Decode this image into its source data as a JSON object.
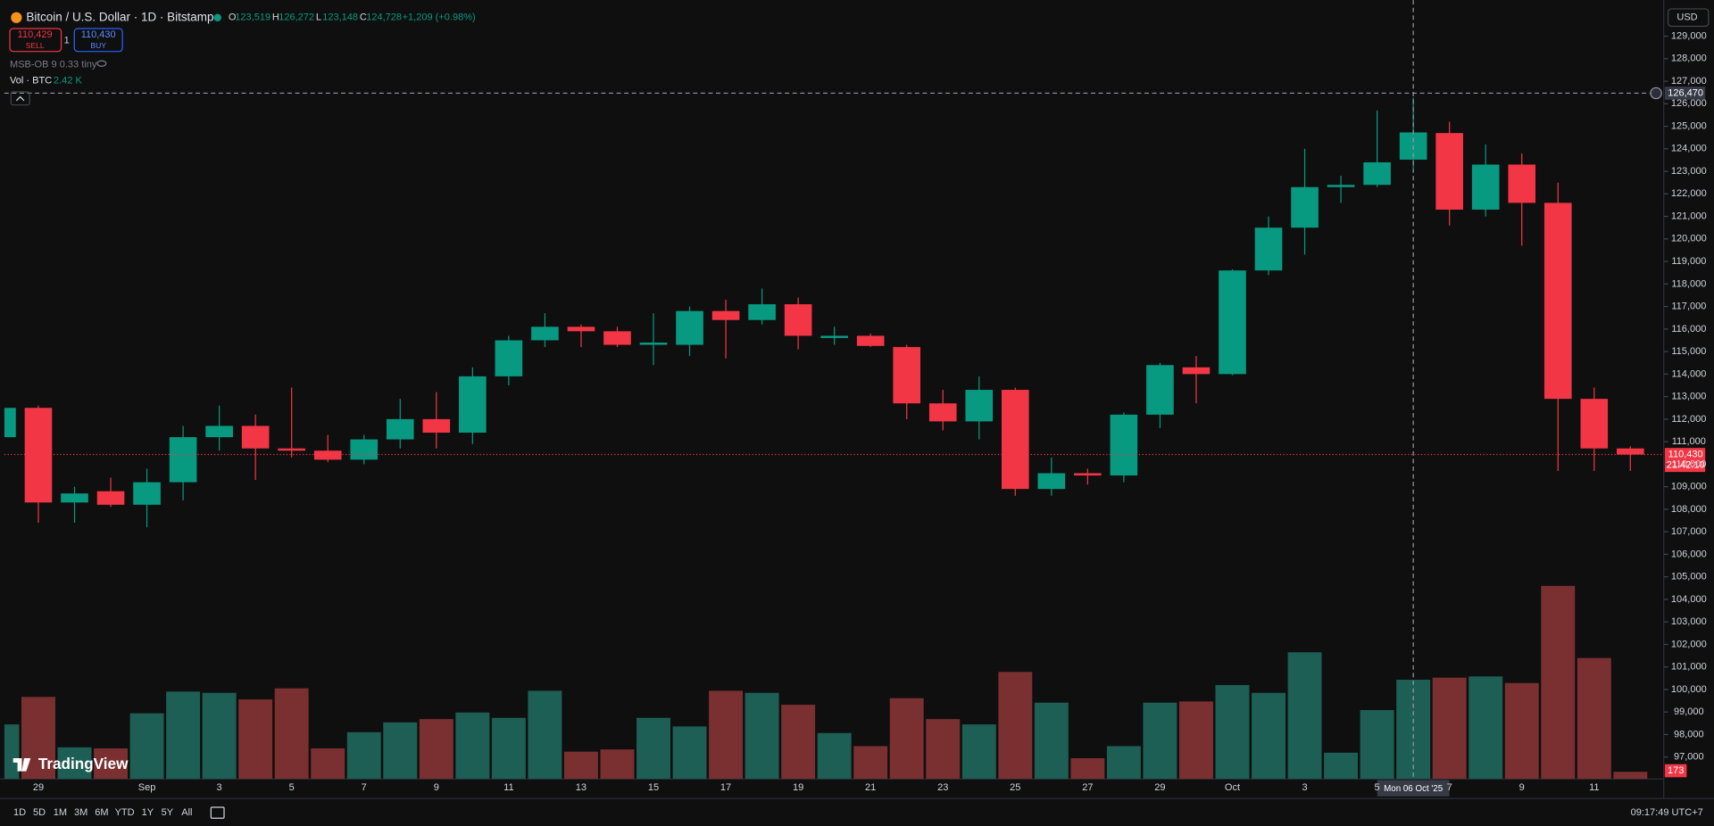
{
  "header": {
    "title": "Bitcoin / U.S. Dollar · 1D · Bitstamp",
    "ohlc": [
      {
        "label": "O",
        "value": "123,519"
      },
      {
        "label": "H",
        "value": "126,272"
      },
      {
        "label": "L",
        "value": "123,148"
      },
      {
        "label": "C",
        "value": "124,728"
      }
    ],
    "change": "+1,209 (+0.98%)",
    "sell": {
      "price": "110,429",
      "label": "SELL"
    },
    "quantity": "1",
    "buy": {
      "price": "110,430",
      "label": "BUY"
    },
    "indicator": "MSB-OB 9 0.33 tiny",
    "volume_legend": {
      "label": "Vol · BTC",
      "value": "2.42 K"
    },
    "currency": "USD"
  },
  "chart_data": {
    "type": "candlestick",
    "categories": [
      null,
      "29",
      null,
      null,
      "Sep",
      null,
      "3",
      null,
      "5",
      null,
      "7",
      null,
      "9",
      null,
      "11",
      null,
      "13",
      null,
      "15",
      null,
      "17",
      null,
      "19",
      null,
      "21",
      null,
      "23",
      null,
      "25",
      null,
      "27",
      null,
      "29",
      null,
      "Oct",
      null,
      "3",
      null,
      "5",
      null,
      "7",
      null,
      "9",
      null,
      "11",
      null
    ],
    "open": [
      111200,
      112500,
      108300,
      108800,
      108200,
      109200,
      111200,
      111700,
      110700,
      110600,
      110200,
      111100,
      112000,
      111400,
      113900,
      115500,
      116100,
      115900,
      115300,
      115300,
      116800,
      116400,
      117100,
      115600,
      115700,
      115200,
      112700,
      111900,
      113300,
      108900,
      109600,
      109500,
      112200,
      114300,
      114000,
      118600,
      120500,
      122300,
      122400,
      123519,
      124700,
      121300,
      123300,
      121600,
      112900,
      110700
    ],
    "high": [
      112600,
      112600,
      109000,
      109400,
      109800,
      111700,
      112600,
      112200,
      113400,
      111300,
      111300,
      112900,
      113200,
      114300,
      115700,
      116700,
      116200,
      116100,
      116700,
      117000,
      117300,
      117800,
      117400,
      116100,
      115800,
      115300,
      113300,
      113900,
      113400,
      110300,
      109800,
      112300,
      114500,
      114800,
      118650,
      121000,
      124000,
      122800,
      125700,
      126272,
      125200,
      124200,
      123800,
      122500,
      113400,
      110800
    ],
    "low": [
      110900,
      107400,
      107400,
      108100,
      107200,
      108400,
      110600,
      109300,
      110300,
      110100,
      110000,
      110700,
      110700,
      110900,
      113500,
      115200,
      115200,
      115200,
      114400,
      114800,
      114700,
      116200,
      115100,
      115300,
      115200,
      112000,
      111500,
      111100,
      108600,
      108600,
      109100,
      109200,
      111600,
      112700,
      113950,
      118400,
      119300,
      121600,
      122300,
      123148,
      120600,
      121000,
      119700,
      109700,
      109700,
      109700
    ],
    "close": [
      112500,
      108300,
      108700,
      108200,
      109200,
      111200,
      111700,
      110700,
      110600,
      110200,
      111100,
      112000,
      111400,
      113900,
      115500,
      116100,
      115900,
      115300,
      115400,
      116800,
      116400,
      117100,
      115700,
      115700,
      115250,
      112700,
      111900,
      113300,
      108900,
      109600,
      109500,
      112200,
      114400,
      114000,
      118600,
      120500,
      122300,
      122400,
      123400,
      124728,
      121300,
      123300,
      121600,
      112900,
      110700,
      110430
    ],
    "volume": [
      1330,
      2000,
      770,
      745,
      1600,
      2130,
      2100,
      1940,
      2210,
      745,
      1140,
      1380,
      1460,
      1620,
      1490,
      2150,
      665,
      720,
      1490,
      1280,
      2150,
      2100,
      1810,
      1120,
      800,
      1970,
      1460,
      1330,
      2610,
      1860,
      505,
      800,
      1860,
      1890,
      2290,
      2100,
      3090,
      640,
      1680,
      2420,
      2470,
      2500,
      2340,
      4710,
      2950,
      173
    ],
    "up_color": "#089981",
    "down_color": "#f23645",
    "volume_up_color": "#1d5e55",
    "volume_down_color": "#7a2f30",
    "ylim": [
      96030,
      130600
    ],
    "volume_ylim": [
      0,
      19000
    ],
    "yticks": [
      {
        "value": 97000,
        "label": "97,000"
      },
      {
        "value": 98000,
        "label": "98,000"
      },
      {
        "value": 99000,
        "label": "99,000"
      },
      {
        "value": 100000,
        "label": "100,000"
      },
      {
        "value": 101000,
        "label": "101,000"
      },
      {
        "value": 102000,
        "label": "102,000"
      },
      {
        "value": 103000,
        "label": "103,000"
      },
      {
        "value": 104000,
        "label": "104,000"
      },
      {
        "value": 105000,
        "label": "105,000"
      },
      {
        "value": 106000,
        "label": "106,000"
      },
      {
        "value": 107000,
        "label": "107,000"
      },
      {
        "value": 108000,
        "label": "108,000"
      },
      {
        "value": 109000,
        "label": "109,000"
      },
      {
        "value": 110000,
        "label": "110,000"
      },
      {
        "value": 111000,
        "label": "111,000"
      },
      {
        "value": 112000,
        "label": "112,000"
      },
      {
        "value": 113000,
        "label": "113,000"
      },
      {
        "value": 114000,
        "label": "114,000"
      },
      {
        "value": 115000,
        "label": "115,000"
      },
      {
        "value": 116000,
        "label": "116,000"
      },
      {
        "value": 117000,
        "label": "117,000"
      },
      {
        "value": 118000,
        "label": "118,000"
      },
      {
        "value": 119000,
        "label": "119,000"
      },
      {
        "value": 120000,
        "label": "120,000"
      },
      {
        "value": 121000,
        "label": "121,000"
      },
      {
        "value": 122000,
        "label": "122,000"
      },
      {
        "value": 123000,
        "label": "123,000"
      },
      {
        "value": 124000,
        "label": "124,000"
      },
      {
        "value": 125000,
        "label": "125,000"
      },
      {
        "value": 126000,
        "label": "126,000"
      },
      {
        "value": 127000,
        "label": "127,000"
      },
      {
        "value": 128000,
        "label": "128,000"
      },
      {
        "value": 129000,
        "label": "129,000"
      }
    ],
    "grid": false,
    "current_price": {
      "value": 110430,
      "label": "110,430"
    },
    "countdown": "21:42:10",
    "crosshair": {
      "price": {
        "value": 126470,
        "label": "126,470"
      },
      "index": 39,
      "date": "Mon 06 Oct '25"
    }
  },
  "brand": "TradingView",
  "toolbar": {
    "ranges": [
      "1D",
      "5D",
      "1M",
      "3M",
      "6M",
      "YTD",
      "1Y",
      "5Y",
      "All"
    ],
    "clock": "09:17:49 UTC+7"
  }
}
